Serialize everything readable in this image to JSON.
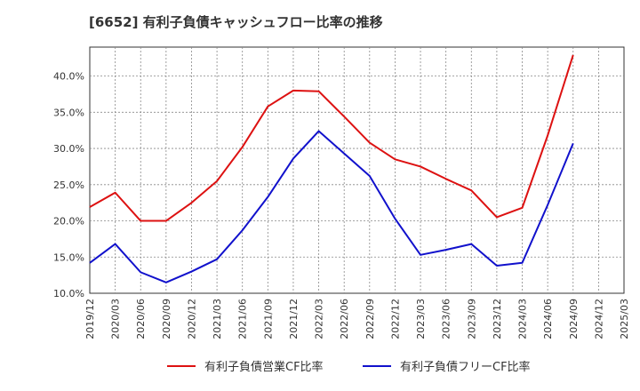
{
  "chart_data": {
    "type": "line",
    "title": "[6652]  有利子負債キャッシュフロー比率の推移",
    "xlabel": "",
    "ylabel": "",
    "ylim": [
      10,
      44
    ],
    "yticks": [
      10,
      15,
      20,
      25,
      30,
      35,
      40
    ],
    "ytick_labels": [
      "10.0%",
      "15.0%",
      "20.0%",
      "25.0%",
      "30.0%",
      "35.0%",
      "40.0%"
    ],
    "x_ticks": [
      "2019/12",
      "2020/03",
      "2020/06",
      "2020/09",
      "2020/12",
      "2021/03",
      "2021/06",
      "2021/09",
      "2021/12",
      "2022/03",
      "2022/06",
      "2022/09",
      "2022/12",
      "2023/03",
      "2023/06",
      "2023/09",
      "2023/12",
      "2024/03",
      "2024/06",
      "2024/09",
      "2024/12",
      "2025/03"
    ],
    "grid": true,
    "legend_position": "bottom",
    "series": [
      {
        "name": "有利子負債営業CF比率",
        "color": "#dd1111",
        "x": [
          "2019/12",
          "2020/03",
          "2020/06",
          "2020/09",
          "2020/12",
          "2021/03",
          "2021/06",
          "2021/09",
          "2021/12",
          "2022/03",
          "2022/06",
          "2022/09",
          "2022/12",
          "2023/03",
          "2023/06",
          "2023/09",
          "2023/12",
          "2024/03",
          "2024/06",
          "2024/09"
        ],
        "values": [
          21.9,
          23.9,
          20.0,
          20.0,
          22.5,
          25.5,
          30.2,
          35.8,
          38.0,
          37.9,
          34.4,
          30.8,
          28.5,
          27.5,
          25.8,
          24.2,
          20.5,
          21.8,
          31.8,
          42.9
        ]
      },
      {
        "name": "有利子負債フリーCF比率",
        "color": "#1111cc",
        "x": [
          "2019/12",
          "2020/03",
          "2020/06",
          "2020/09",
          "2020/12",
          "2021/03",
          "2021/06",
          "2021/09",
          "2021/12",
          "2022/03",
          "2022/06",
          "2022/09",
          "2022/12",
          "2023/03",
          "2023/06",
          "2023/09",
          "2023/12",
          "2024/03",
          "2024/06",
          "2024/09"
        ],
        "values": [
          14.2,
          16.8,
          12.9,
          11.5,
          13.0,
          14.7,
          18.7,
          23.3,
          28.6,
          32.4,
          29.3,
          26.2,
          20.3,
          15.3,
          16.0,
          16.8,
          13.8,
          14.2,
          22.2,
          30.7
        ]
      }
    ]
  }
}
